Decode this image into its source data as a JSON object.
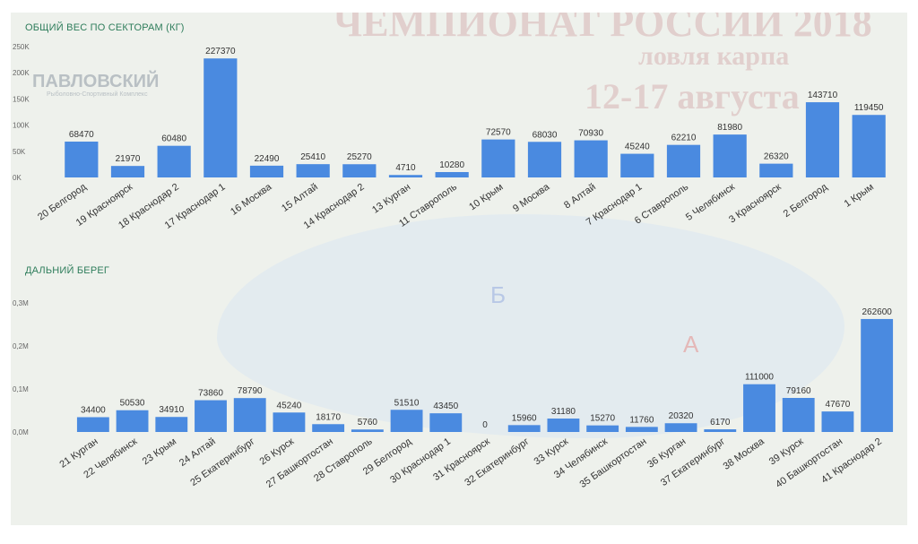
{
  "colors": {
    "bar": "#4a8ae0",
    "title": "#2e7d5b",
    "background": "#eef1ec"
  },
  "watermark": {
    "brand": "ПАВЛОВСКИЙ",
    "brand_sub": "Рыболовно-Спортивный Комплекс",
    "event_line1": "ЧЕМПИОНАТ РОССИИ 2018",
    "event_line2": "ловля карпа",
    "event_line3": "12-17 августа",
    "zone_a": "А",
    "zone_b": "Б"
  },
  "chart_data": [
    {
      "type": "bar",
      "title": "ОБЩИЙ ВЕС ПО СЕКТОРАМ (КГ)",
      "categories": [
        "20 Белгород",
        "19 Красноярск",
        "18 Краснодар 2",
        "17 Краснодар 1",
        "16 Москва",
        "15 Алтай",
        "14 Краснодар 2",
        "13 Курган",
        "11 Ставрополь",
        "10 Крым",
        "9 Москва",
        "8 Алтай",
        "7 Краснодар 1",
        "6 Ставрополь",
        "5 Челябинск",
        "3 Красноярск",
        "2 Белгород",
        "1 Крым"
      ],
      "values": [
        68470,
        21970,
        60480,
        227370,
        22490,
        25410,
        25270,
        4710,
        10280,
        72570,
        68030,
        70930,
        45240,
        62210,
        81980,
        26320,
        143710,
        119450
      ],
      "ylim": [
        0,
        250000
      ],
      "yticks": [
        0,
        50000,
        100000,
        150000,
        200000,
        250000
      ],
      "ytick_labels": [
        "0K",
        "50K",
        "100K",
        "150K",
        "200K",
        "250K"
      ],
      "grid": false
    },
    {
      "type": "bar",
      "title": "ДАЛЬНИЙ БЕРЕГ",
      "categories": [
        "21 Курган",
        "22 Челябинск",
        "23 Крым",
        "24 Алтай",
        "25 Екатеринбург",
        "26 Курск",
        "27 Башкортостан",
        "28 Ставрополь",
        "29 Белгород",
        "30 Краснодар 1",
        "31 Красноярск",
        "32 Екатеринбург",
        "33 Курск",
        "34 Челябинск",
        "35 Башкортостан",
        "36 Курган",
        "37 Екатеринбург",
        "38 Москва",
        "39 Курск",
        "40 Башкортостан",
        "41 Краснодар 2"
      ],
      "values": [
        34400,
        50530,
        34910,
        73860,
        78790,
        45240,
        18170,
        5760,
        51510,
        43450,
        0,
        15960,
        31180,
        15270,
        11760,
        20320,
        6170,
        111000,
        79160,
        47670,
        262600
      ],
      "ylim": [
        0,
        300000
      ],
      "yticks": [
        0,
        100000,
        200000,
        300000
      ],
      "ytick_labels": [
        "0,0M",
        "0,1M",
        "0,2M",
        "0,3M"
      ],
      "grid": false
    }
  ]
}
